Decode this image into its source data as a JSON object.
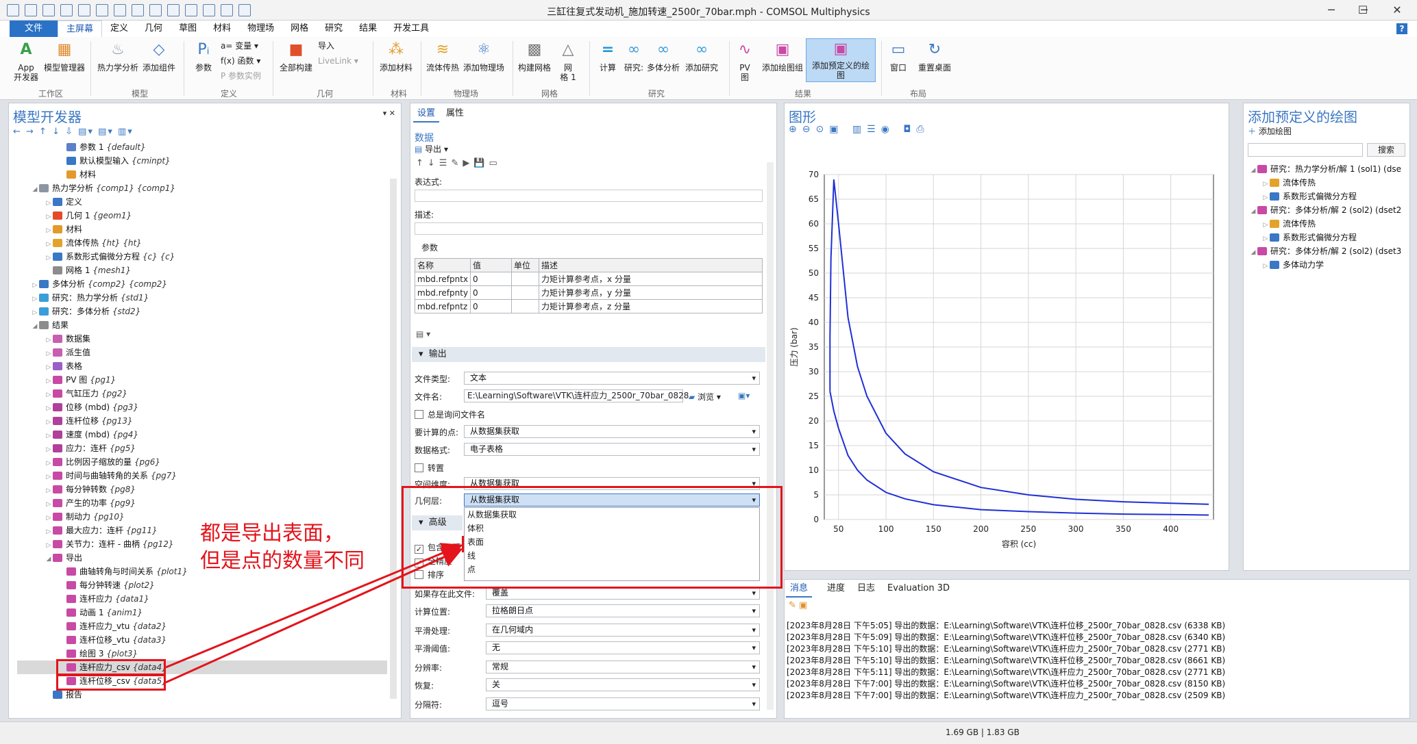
{
  "window": {
    "title": "三缸往复式发动机_施加转速_2500r_70bar.mph - COMSOL Multiphysics",
    "min": "─",
    "max": "☐",
    "close": "✕"
  },
  "menu": [
    "文件",
    "主屏幕",
    "定义",
    "几何",
    "草图",
    "材料",
    "物理场",
    "网格",
    "研究",
    "结果",
    "开发工具"
  ],
  "help": "?",
  "ribbon": {
    "btns": [
      {
        "id": "app",
        "label": "App\n开发器",
        "icon": "A"
      },
      {
        "id": "mm",
        "label": "模型管理器",
        "icon": "▦"
      },
      {
        "id": "ta",
        "label": "热力学分析",
        "icon": "♨"
      },
      {
        "id": "ac",
        "label": "添加组件",
        "icon": "◇"
      },
      {
        "id": "pa",
        "label": "参数",
        "icon": "Pᵢ"
      },
      {
        "id": "ab",
        "label": "全部构建",
        "icon": "■"
      },
      {
        "id": "am",
        "label": "添加材料",
        "icon": "⁂"
      },
      {
        "id": "fh",
        "label": "流体传热",
        "icon": "≋"
      },
      {
        "id": "ap",
        "label": "添加物理场",
        "icon": "⚛"
      },
      {
        "id": "bm",
        "label": "构建网格",
        "icon": "▩"
      },
      {
        "id": "mg",
        "label": "网\n格 1",
        "icon": "△"
      },
      {
        "id": "cp",
        "label": "计算",
        "icon": "="
      },
      {
        "id": "st",
        "label": "研究:",
        "icon": "∞"
      },
      {
        "id": "mb",
        "label": "多体分析",
        "icon": "∞"
      },
      {
        "id": "as",
        "label": "添加研究",
        "icon": "∞"
      },
      {
        "id": "pv",
        "label": "PV\n图",
        "icon": "∿"
      },
      {
        "id": "apg",
        "label": "添加绘图组",
        "icon": "▣"
      },
      {
        "id": "app2",
        "label": "添加预定义的绘图",
        "icon": "▣"
      },
      {
        "id": "win",
        "label": "窗口",
        "icon": "▭"
      },
      {
        "id": "rd",
        "label": "重置桌面",
        "icon": "↻"
      }
    ],
    "small": {
      "var": "a= 变量 ▾",
      "fn": "f(x) 函数 ▾",
      "pinst": "P 参数实例",
      "imp": "导入",
      "live": "LiveLink ▾"
    },
    "groups": [
      "工作区",
      "模型",
      "定义",
      "几何",
      "材料",
      "物理场",
      "网格",
      "研究",
      "结果",
      "布局"
    ]
  },
  "model_builder": {
    "title": "模型开发器",
    "toolbar": "← → ↑ ↓ ⇩ ▤▾ ▤▾ ▥▾",
    "rows": [
      {
        "ind": 3,
        "tw": "",
        "name": "参数 1",
        "tag": "{default}",
        "col": "#5b7fc9"
      },
      {
        "ind": 3,
        "tw": "",
        "name": "默认模型输入",
        "tag": "{cminpt}",
        "col": "#3a77c4"
      },
      {
        "ind": 3,
        "tw": "",
        "name": "材料",
        "tag": "",
        "col": "#e39a2b"
      },
      {
        "ind": 1,
        "tw": "◢",
        "name": "热力学分析",
        "tag": "{comp1} {comp1}",
        "col": "#8c96a3"
      },
      {
        "ind": 2,
        "tw": "▷",
        "name": "定义",
        "tag": "",
        "col": "#3a77c4"
      },
      {
        "ind": 2,
        "tw": "▷",
        "name": "几何 1",
        "tag": "{geom1}",
        "col": "#e44b2a"
      },
      {
        "ind": 2,
        "tw": "▷",
        "name": "材料",
        "tag": "",
        "col": "#e39a2b"
      },
      {
        "ind": 2,
        "tw": "▷",
        "name": "流体传热",
        "tag": "{ht} {ht}",
        "col": "#e3a32b"
      },
      {
        "ind": 2,
        "tw": "▷",
        "name": "系数形式偏微分方程",
        "tag": "{c} {c}",
        "col": "#3a77c4"
      },
      {
        "ind": 2,
        "tw": "",
        "name": "网格 1",
        "tag": "{mesh1}",
        "col": "#8c8c8c"
      },
      {
        "ind": 1,
        "tw": "▷",
        "name": "多体分析",
        "tag": "{comp2} {comp2}",
        "col": "#3a77c4"
      },
      {
        "ind": 1,
        "tw": "▷",
        "name": "研究：热力学分析",
        "tag": "{std1}",
        "col": "#3a9fd8"
      },
      {
        "ind": 1,
        "tw": "▷",
        "name": "研究：多体分析",
        "tag": "{std2}",
        "col": "#3a9fd8"
      },
      {
        "ind": 1,
        "tw": "◢",
        "name": "结果",
        "tag": "",
        "col": "#8c8c8c"
      },
      {
        "ind": 2,
        "tw": "▷",
        "name": "数据集",
        "tag": "",
        "col": "#c85fb0"
      },
      {
        "ind": 2,
        "tw": "▷",
        "name": "派生值",
        "tag": "",
        "col": "#c85fb0"
      },
      {
        "ind": 2,
        "tw": "▷",
        "name": "表格",
        "tag": "",
        "col": "#9b5fc8"
      },
      {
        "ind": 2,
        "tw": "▷",
        "name": "PV 图",
        "tag": "{pg1}",
        "col": "#c84aa5"
      },
      {
        "ind": 2,
        "tw": "▷",
        "name": "气缸压力",
        "tag": "{pg2}",
        "col": "#c84aa5"
      },
      {
        "ind": 2,
        "tw": "▷",
        "name": "位移 (mbd)",
        "tag": "{pg3}",
        "col": "#b0409a"
      },
      {
        "ind": 2,
        "tw": "▷",
        "name": "连杆位移",
        "tag": "{pg13}",
        "col": "#b0409a"
      },
      {
        "ind": 2,
        "tw": "▷",
        "name": "速度 (mbd)",
        "tag": "{pg4}",
        "col": "#b0409a"
      },
      {
        "ind": 2,
        "tw": "▷",
        "name": "应力：连杆",
        "tag": "{pg5}",
        "col": "#b0409a"
      },
      {
        "ind": 2,
        "tw": "▷",
        "name": "比例因子缩放的量",
        "tag": "{pg6}",
        "col": "#c84aa5"
      },
      {
        "ind": 2,
        "tw": "▷",
        "name": "时间与曲轴转角的关系",
        "tag": "{pg7}",
        "col": "#c84aa5"
      },
      {
        "ind": 2,
        "tw": "▷",
        "name": "每分钟转数",
        "tag": "{pg8}",
        "col": "#c84aa5"
      },
      {
        "ind": 2,
        "tw": "▷",
        "name": "产生的功率",
        "tag": "{pg9}",
        "col": "#c84aa5"
      },
      {
        "ind": 2,
        "tw": "▷",
        "name": "制动力",
        "tag": "{pg10}",
        "col": "#c84aa5"
      },
      {
        "ind": 2,
        "tw": "▷",
        "name": "最大应力：连杆",
        "tag": "{pg11}",
        "col": "#c84aa5"
      },
      {
        "ind": 2,
        "tw": "▷",
        "name": "关节力：连杆 - 曲柄",
        "tag": "{pg12}",
        "col": "#c84aa5"
      },
      {
        "ind": 2,
        "tw": "◢",
        "name": "导出",
        "tag": "",
        "col": "#c84aa5"
      },
      {
        "ind": 3,
        "tw": "",
        "name": "曲轴转角与时间关系",
        "tag": "{plot1}",
        "col": "#c84aa5"
      },
      {
        "ind": 3,
        "tw": "",
        "name": "每分钟转速",
        "tag": "{plot2}",
        "col": "#c84aa5"
      },
      {
        "ind": 3,
        "tw": "",
        "name": "连杆应力",
        "tag": "{data1}",
        "col": "#c84aa5"
      },
      {
        "ind": 3,
        "tw": "",
        "name": "动画 1",
        "tag": "{anim1}",
        "col": "#c84aa5"
      },
      {
        "ind": 3,
        "tw": "",
        "name": "连杆应力_vtu",
        "tag": "{data2}",
        "col": "#c84aa5"
      },
      {
        "ind": 3,
        "tw": "",
        "name": "连杆位移_vtu",
        "tag": "{data3}",
        "col": "#c84aa5"
      },
      {
        "ind": 3,
        "tw": "",
        "name": "绘图 3",
        "tag": "{plot3}",
        "col": "#c84aa5"
      },
      {
        "ind": 3,
        "tw": "",
        "name": "连杆应力_csv",
        "tag": "{data4}",
        "col": "#c84aa5",
        "sel": true
      },
      {
        "ind": 3,
        "tw": "",
        "name": "连杆位移_csv",
        "tag": "{data5}",
        "col": "#c84aa5"
      },
      {
        "ind": 2,
        "tw": "",
        "name": "报告",
        "tag": "",
        "col": "#3a77c4"
      }
    ]
  },
  "settings": {
    "tabs": [
      "设置",
      "属性"
    ],
    "section": "数据",
    "export": "导出",
    "expr_label": "表达式:",
    "desc_label": "描述:",
    "params_label": "参数",
    "table_head": [
      "名称",
      "值",
      "单位",
      "描述"
    ],
    "table_rows": [
      [
        "mbd.refpntx",
        "0",
        "",
        "力矩计算参考点，x 分量"
      ],
      [
        "mbd.refpnty",
        "0",
        "",
        "力矩计算参考点，y 分量"
      ],
      [
        "mbd.refpntz",
        "0",
        "",
        "力矩计算参考点，z 分量"
      ]
    ],
    "output_hdr": "输出",
    "filetype_l": "文件类型:",
    "filetype_v": "文本",
    "filename_l": "文件名:",
    "filename_v": "E:\\Learning\\Software\\VTK\\连杆应力_2500r_70bar_0828.",
    "browse": "浏览",
    "always_ask": "总是询问文件名",
    "points_l": "要计算的点:",
    "points_v": "从数据集获取",
    "format_l": "数据格式:",
    "format_v": "电子表格",
    "transpose": "转置",
    "spdim_l": "空间维度:",
    "spdim_v": "从数据集获取",
    "geolevel_l": "几何层:",
    "geolevel_v": "从数据集获取",
    "options": [
      "从数据集获取",
      "体积",
      "表面",
      "线",
      "点"
    ],
    "adv_hdr": "高级",
    "include_header": "包含标题",
    "precision": "全精度",
    "sort": "排序",
    "ifexists_l": "如果存在此文件:",
    "ifexists_v": "覆盖",
    "evalloc_l": "计算位置:",
    "evalloc_v": "拉格朗日点",
    "smooth_l": "平滑处理:",
    "smooth_v": "在几何域内",
    "smoothth_l": "平滑阈值:",
    "smoothth_v": "无",
    "res_l": "分辨率:",
    "res_v": "常规",
    "recover_l": "恢复:",
    "recover_v": "关",
    "sep_l": "分隔符:",
    "sep_v": "逗号"
  },
  "graphics": {
    "title": "图形"
  },
  "chart_data": {
    "type": "line",
    "xlabel": "容积 (cc)",
    "ylabel": "压力 (bar)",
    "xlim": [
      35,
      445
    ],
    "ylim": [
      0,
      70
    ],
    "xticks": [
      50,
      100,
      150,
      200,
      250,
      300,
      350,
      400
    ],
    "yticks": [
      0,
      5,
      10,
      15,
      20,
      25,
      30,
      35,
      40,
      45,
      50,
      55,
      60,
      65,
      70
    ],
    "grid": true,
    "series": [
      {
        "x": [
          41,
          41,
          42,
          45,
          50,
          60,
          70,
          80,
          100,
          120,
          150,
          200,
          250,
          300,
          350,
          400,
          440
        ],
        "y": [
          26,
          37,
          53,
          69,
          60,
          41,
          31,
          25,
          17.5,
          13.3,
          9.7,
          6.5,
          5,
          4.1,
          3.6,
          3.3,
          3.1
        ]
      },
      {
        "x": [
          41,
          45,
          50,
          60,
          70,
          80,
          100,
          120,
          150,
          200,
          250,
          300,
          350,
          400,
          440
        ],
        "y": [
          26,
          22,
          18.5,
          13,
          10,
          8,
          5.5,
          4.2,
          3,
          2,
          1.6,
          1.3,
          1.1,
          1,
          0.9
        ]
      }
    ]
  },
  "messages": {
    "tabs": [
      "消息",
      "进度",
      "日志",
      "Evaluation 3D"
    ],
    "lines": [
      "[2023年8月28日 下午5:05] 导出的数据：E:\\Learning\\Software\\VTK\\连杆位移_2500r_70bar_0828.csv (6338 KB)",
      "[2023年8月28日 下午5:09] 导出的数据：E:\\Learning\\Software\\VTK\\连杆位移_2500r_70bar_0828.csv (6340 KB)",
      "[2023年8月28日 下午5:10] 导出的数据：E:\\Learning\\Software\\VTK\\连杆应力_2500r_70bar_0828.csv (2771 KB)",
      "[2023年8月28日 下午5:10] 导出的数据：E:\\Learning\\Software\\VTK\\连杆位移_2500r_70bar_0828.csv (8661 KB)",
      "[2023年8月28日 下午5:11] 导出的数据：E:\\Learning\\Software\\VTK\\连杆应力_2500r_70bar_0828.csv (2771 KB)",
      "[2023年8月28日 下午7:00] 导出的数据：E:\\Learning\\Software\\VTK\\连杆位移_2500r_70bar_0828.csv (8150 KB)",
      "[2023年8月28日 下午7:00] 导出的数据：E:\\Learning\\Software\\VTK\\连杆应力_2500r_70bar_0828.csv (2509 KB)"
    ]
  },
  "add_plot": {
    "title": "添加预定义的绘图",
    "add": "添加绘图",
    "search_btn": "搜索",
    "rows": [
      {
        "ind": 0,
        "tw": "◢",
        "name": "研究：热力学分析/解 1 (sol1) (dse",
        "col": "#c84aa5"
      },
      {
        "ind": 1,
        "tw": "▷",
        "name": "流体传热",
        "col": "#e3a32b"
      },
      {
        "ind": 1,
        "tw": "▷",
        "name": "系数形式偏微分方程",
        "col": "#3a77c4"
      },
      {
        "ind": 0,
        "tw": "◢",
        "name": "研究：多体分析/解 2 (sol2) (dset2",
        "col": "#c84aa5"
      },
      {
        "ind": 1,
        "tw": "▷",
        "name": "流体传热",
        "col": "#e3a32b"
      },
      {
        "ind": 1,
        "tw": "▷",
        "name": "系数形式偏微分方程",
        "col": "#3a77c4"
      },
      {
        "ind": 0,
        "tw": "◢",
        "name": "研究：多体分析/解 2 (sol2) (dset3",
        "col": "#c84aa5"
      },
      {
        "ind": 1,
        "tw": "▷",
        "name": "多体动力学",
        "col": "#3a77c4"
      }
    ]
  },
  "status": "1.69 GB | 1.83 GB",
  "annotation": {
    "line1": "都是导出表面，",
    "line2": "但是点的数量不同"
  }
}
